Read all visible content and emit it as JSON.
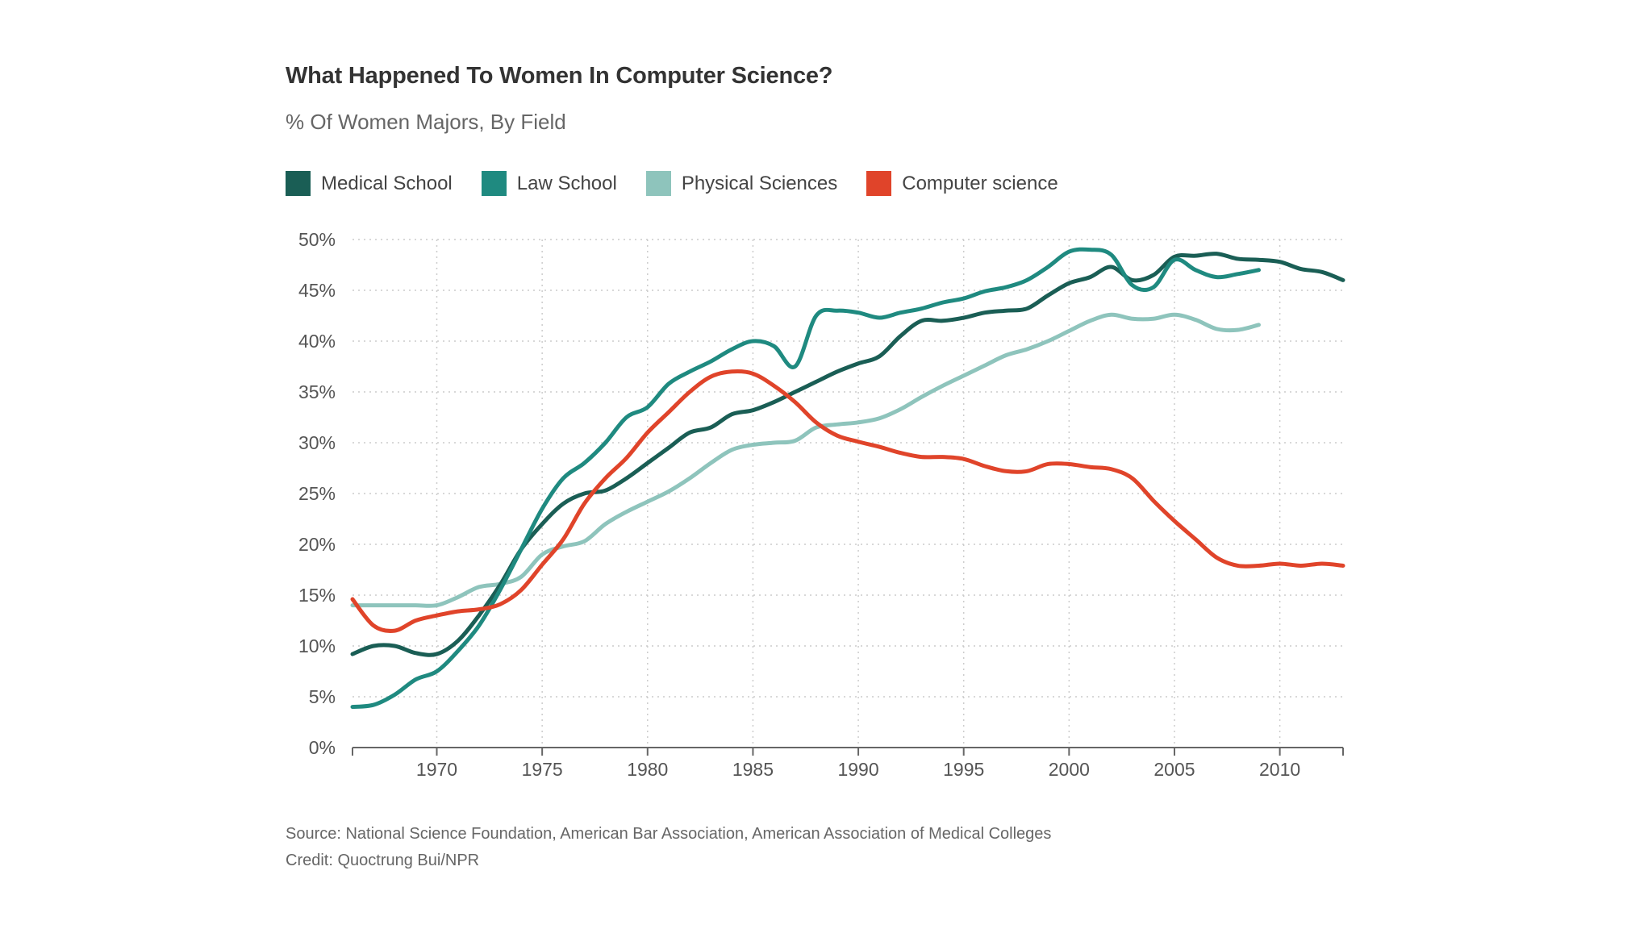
{
  "chart_data": {
    "type": "line",
    "title": "What Happened To Women In Computer Science?",
    "subtitle": "% Of Women Majors, By Field",
    "xlabel": "",
    "ylabel": "",
    "xlim": [
      1966,
      2013
    ],
    "ylim": [
      0,
      50
    ],
    "x_ticks": [
      1970,
      1975,
      1980,
      1985,
      1990,
      1995,
      2000,
      2005,
      2010
    ],
    "x_tick_labels": [
      "1970",
      "1975",
      "1980",
      "1985",
      "1990",
      "1995",
      "2000",
      "2005",
      "2010"
    ],
    "y_ticks": [
      0,
      5,
      10,
      15,
      20,
      25,
      30,
      35,
      40,
      45,
      50
    ],
    "y_tick_labels": [
      "0%",
      "5%",
      "10%",
      "15%",
      "20%",
      "25%",
      "30%",
      "35%",
      "40%",
      "45%",
      "50%"
    ],
    "grid": true,
    "legend_position": "top-left",
    "series": [
      {
        "name": "Medical School",
        "color": "#1a5e55",
        "x": [
          1966,
          1967,
          1968,
          1969,
          1970,
          1971,
          1972,
          1973,
          1974,
          1975,
          1976,
          1977,
          1978,
          1979,
          1980,
          1981,
          1982,
          1983,
          1984,
          1985,
          1986,
          1987,
          1988,
          1989,
          1990,
          1991,
          1992,
          1993,
          1994,
          1995,
          1996,
          1997,
          1998,
          1999,
          2000,
          2001,
          2002,
          2003,
          2004,
          2005,
          2006,
          2007,
          2008,
          2009,
          2010,
          2011,
          2012,
          2013
        ],
        "values": [
          9.2,
          10,
          10,
          9.3,
          9.2,
          10.5,
          13,
          16,
          19.5,
          22,
          24,
          25,
          25.3,
          26.5,
          28,
          29.5,
          31,
          31.5,
          32.8,
          33.2,
          34,
          35,
          36,
          37,
          37.8,
          38.5,
          40.5,
          42,
          42,
          42.3,
          42.8,
          43,
          43.2,
          44.5,
          45.7,
          46.3,
          47.3,
          46,
          46.5,
          48.3,
          48.4,
          48.6,
          48.1,
          48,
          47.8,
          47.1,
          46.8,
          46
        ]
      },
      {
        "name": "Law School",
        "color": "#1f8a80",
        "x": [
          1966,
          1967,
          1968,
          1969,
          1970,
          1971,
          1972,
          1973,
          1974,
          1975,
          1976,
          1977,
          1978,
          1979,
          1980,
          1981,
          1982,
          1983,
          1984,
          1985,
          1986,
          1987,
          1988,
          1989,
          1990,
          1991,
          1992,
          1993,
          1994,
          1995,
          1996,
          1997,
          1998,
          1999,
          2000,
          2001,
          2002,
          2003,
          2004,
          2005,
          2006,
          2007,
          2008,
          2009
        ],
        "values": [
          4,
          4.2,
          5.2,
          6.7,
          7.5,
          9.5,
          12,
          15.5,
          19.5,
          23.5,
          26.5,
          28,
          30,
          32.5,
          33.5,
          35.8,
          37,
          38,
          39.2,
          40,
          39.5,
          37.5,
          42.5,
          43,
          42.8,
          42.3,
          42.8,
          43.2,
          43.8,
          44.2,
          44.9,
          45.3,
          46,
          47.3,
          48.8,
          49,
          48.5,
          45.5,
          45.3,
          48,
          47,
          46.3,
          46.6,
          47
        ]
      },
      {
        "name": "Physical Sciences",
        "color": "#8ec4bc",
        "x": [
          1966,
          1967,
          1968,
          1969,
          1970,
          1971,
          1972,
          1973,
          1974,
          1975,
          1976,
          1977,
          1978,
          1979,
          1980,
          1981,
          1982,
          1983,
          1984,
          1985,
          1986,
          1987,
          1988,
          1989,
          1990,
          1991,
          1992,
          1993,
          1994,
          1995,
          1996,
          1997,
          1998,
          1999,
          2000,
          2001,
          2002,
          2003,
          2004,
          2005,
          2006,
          2007,
          2008,
          2009
        ],
        "values": [
          14,
          14,
          14,
          14,
          14,
          14.8,
          15.8,
          16.1,
          16.8,
          19,
          19.8,
          20.3,
          22,
          23.2,
          24.2,
          25.2,
          26.5,
          28,
          29.3,
          29.8,
          30,
          30.2,
          31.5,
          31.8,
          32,
          32.4,
          33.3,
          34.5,
          35.6,
          36.6,
          37.6,
          38.6,
          39.2,
          40,
          41,
          42,
          42.6,
          42.2,
          42.2,
          42.6,
          42.1,
          41.2,
          41.1,
          41.6
        ]
      },
      {
        "name": "Computer science",
        "color": "#e0442a",
        "x": [
          1966,
          1967,
          1968,
          1969,
          1970,
          1971,
          1972,
          1973,
          1974,
          1975,
          1976,
          1977,
          1978,
          1979,
          1980,
          1981,
          1982,
          1983,
          1984,
          1985,
          1986,
          1987,
          1988,
          1989,
          1990,
          1991,
          1992,
          1993,
          1994,
          1995,
          1996,
          1997,
          1998,
          1999,
          2000,
          2001,
          2002,
          2003,
          2004,
          2005,
          2006,
          2007,
          2008,
          2009,
          2010,
          2011,
          2012,
          2013
        ],
        "values": [
          14.6,
          12,
          11.5,
          12.5,
          13,
          13.4,
          13.6,
          14.1,
          15.5,
          18,
          20.5,
          24,
          26.5,
          28.5,
          31,
          33,
          35,
          36.5,
          37,
          36.8,
          35.6,
          34,
          32,
          30.7,
          30.1,
          29.6,
          29,
          28.6,
          28.6,
          28.4,
          27.7,
          27.2,
          27.2,
          27.9,
          27.9,
          27.6,
          27.4,
          26.5,
          24.3,
          22.3,
          20.5,
          18.7,
          17.9,
          17.9,
          18.1,
          17.9,
          18.1,
          17.9
        ]
      }
    ],
    "annotations": []
  },
  "footer": {
    "source": "Source: National Science Foundation, American Bar Association, American Association of Medical Colleges",
    "credit": "Credit: Quoctrung Bui/NPR"
  },
  "colors": {
    "axis": "#666666",
    "grid": "#cccccc",
    "tick_text": "#555555"
  }
}
